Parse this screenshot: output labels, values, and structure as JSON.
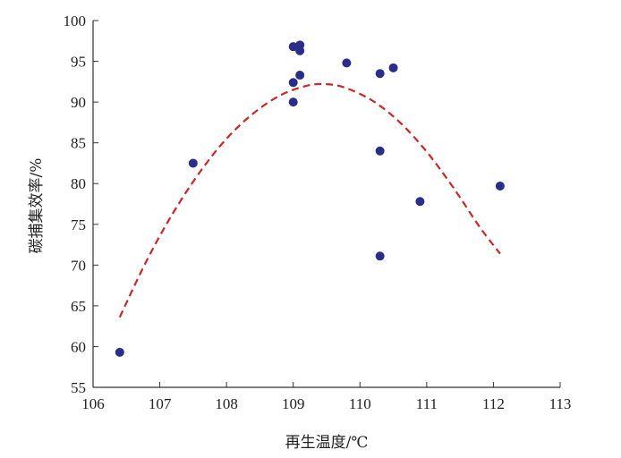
{
  "chart_data": {
    "type": "scatter",
    "xlabel": "再生温度/℃",
    "ylabel": "碳捕集效率/%",
    "xlim": [
      106,
      113
    ],
    "ylim": [
      55,
      100
    ],
    "xticks": [
      106,
      107,
      108,
      109,
      110,
      111,
      112,
      113
    ],
    "yticks": [
      55,
      60,
      65,
      70,
      75,
      80,
      85,
      90,
      95,
      100
    ],
    "grid": false,
    "points": [
      {
        "x": 106.4,
        "y": 59.3
      },
      {
        "x": 107.5,
        "y": 82.5
      },
      {
        "x": 109.0,
        "y": 96.8
      },
      {
        "x": 109.1,
        "y": 97.0
      },
      {
        "x": 109.1,
        "y": 96.3
      },
      {
        "x": 109.1,
        "y": 93.3
      },
      {
        "x": 109.0,
        "y": 92.4
      },
      {
        "x": 109.0,
        "y": 90.0
      },
      {
        "x": 109.8,
        "y": 94.8
      },
      {
        "x": 110.3,
        "y": 93.5
      },
      {
        "x": 110.5,
        "y": 94.2
      },
      {
        "x": 110.3,
        "y": 84.0
      },
      {
        "x": 110.3,
        "y": 71.1
      },
      {
        "x": 110.9,
        "y": 77.8
      },
      {
        "x": 112.1,
        "y": 79.7
      }
    ],
    "fit_curve": {
      "style": "dashed",
      "color": "#c82828",
      "x": [
        106.4,
        106.8,
        107.2,
        107.6,
        108.0,
        108.4,
        108.8,
        109.2,
        109.5,
        109.8,
        110.2,
        110.6,
        111.0,
        111.4,
        111.8,
        112.1
      ],
      "y": [
        63.6,
        70.5,
        76.4,
        81.4,
        85.5,
        88.6,
        90.8,
        92.0,
        92.2,
        91.7,
        90.1,
        87.5,
        83.9,
        79.5,
        74.6,
        71.4
      ]
    },
    "point_color": "#2a2e8a"
  }
}
